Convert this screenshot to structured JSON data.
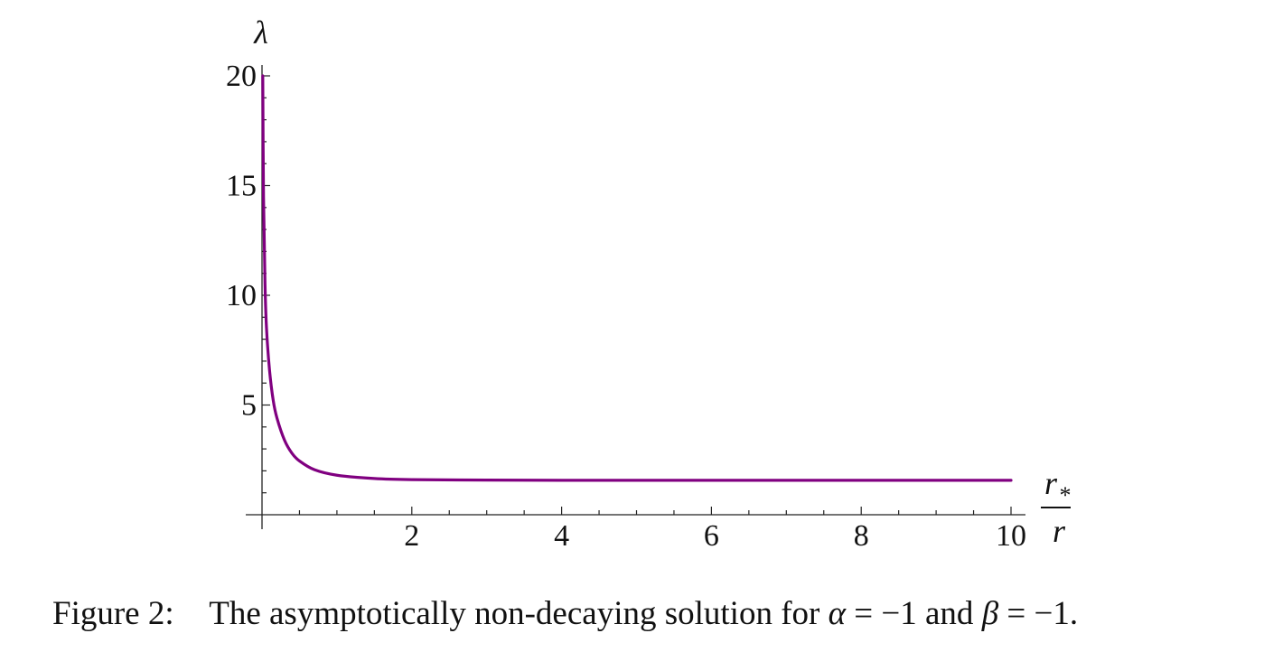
{
  "chart_data": {
    "type": "line",
    "ylabel": "λ",
    "xlabel": {
      "numerator": "r",
      "numerator_subscript": "*",
      "denominator": "r"
    },
    "xlim": [
      0,
      10
    ],
    "ylim": [
      0,
      20
    ],
    "x_ticks": [
      2,
      4,
      6,
      8,
      10
    ],
    "y_ticks": [
      5,
      10,
      15,
      20
    ],
    "x_tick_labels": [
      "2",
      "4",
      "6",
      "8",
      "10"
    ],
    "y_tick_labels": [
      "5",
      "10",
      "15",
      "20"
    ],
    "grid": false,
    "line_color": "#800080",
    "x": [
      0.01,
      0.02,
      0.04,
      0.06,
      0.1,
      0.15,
      0.2,
      0.3,
      0.4,
      0.5,
      0.7,
      1.0,
      1.5,
      2,
      3,
      4,
      5,
      6,
      7,
      8,
      9,
      10
    ],
    "y": [
      20,
      14.5,
      10.5,
      8.5,
      6.6,
      5.2,
      4.4,
      3.4,
      2.8,
      2.45,
      2.05,
      1.8,
      1.65,
      1.6,
      1.58,
      1.57,
      1.57,
      1.57,
      1.57,
      1.57,
      1.57,
      1.57
    ]
  },
  "caption": {
    "label": "Figure 2:",
    "text_before": "The asymptotically non-decaying solution for",
    "alpha": "α",
    "equals_1": "= −1 and",
    "beta": "β",
    "equals_2": "= −1."
  }
}
